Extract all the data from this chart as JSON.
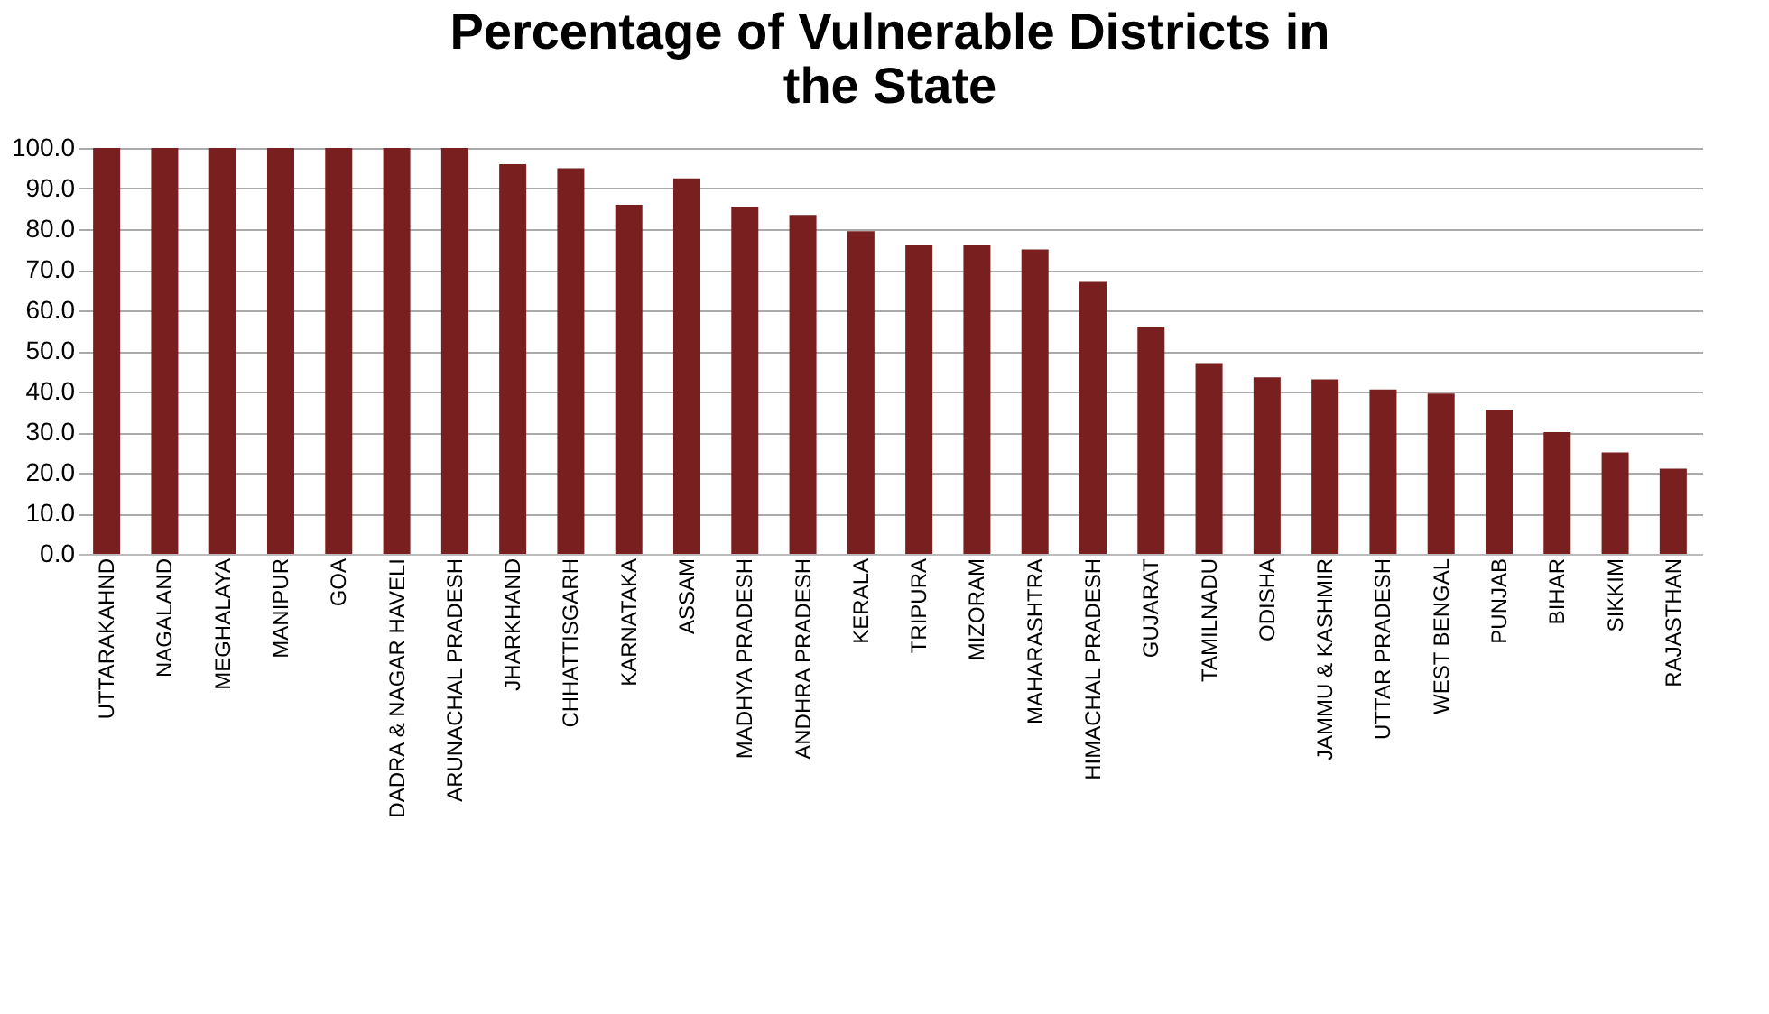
{
  "chart_data": {
    "type": "bar",
    "title": "Percentage of Vulnerable Districts in the State",
    "categories": [
      "UTTARAKAHND",
      "NAGALAND",
      "MEGHALAYA",
      "MANIPUR",
      "GOA",
      "DADRA & NAGAR HAVELI",
      "ARUNACHAL PRADESH",
      "JHARKHAND",
      "CHHATTISGARH",
      "KARNATAKA",
      "ASSAM",
      "MADHYA PRADESH",
      "ANDHRA PRADESH",
      "KERALA",
      "TRIPURA",
      "MIZORAM",
      "MAHARASHTRA",
      "HIMACHAL PRADESH",
      "GUJARAT",
      "TAMILNADU",
      "ODISHA",
      "JAMMU & KASHMIR",
      "UTTAR PRADESH",
      "WEST BENGAL",
      "PUNJAB",
      "BIHAR",
      "SIKKIM",
      "RAJASTHAN"
    ],
    "values": [
      100,
      100,
      100,
      100,
      100,
      100,
      100,
      96,
      95,
      86,
      92.5,
      85.5,
      83.5,
      79.5,
      76,
      76,
      75,
      67,
      56,
      47,
      43.5,
      43,
      40.5,
      39.5,
      35.5,
      30,
      25,
      21
    ],
    "color": "#7a1f1f",
    "ylim": [
      0,
      100
    ],
    "yticks": [
      {
        "value": 0,
        "label": "0.0"
      },
      {
        "value": 10,
        "label": "10.0"
      },
      {
        "value": 20,
        "label": "20.0"
      },
      {
        "value": 30,
        "label": "30.0"
      },
      {
        "value": 40,
        "label": "40.0"
      },
      {
        "value": 50,
        "label": "50.0"
      },
      {
        "value": 60,
        "label": "60.0"
      },
      {
        "value": 70,
        "label": "70.0"
      },
      {
        "value": 80,
        "label": "80.0"
      },
      {
        "value": 90,
        "label": "90.0"
      },
      {
        "value": 100,
        "label": "100.0"
      }
    ],
    "grid": "y"
  }
}
